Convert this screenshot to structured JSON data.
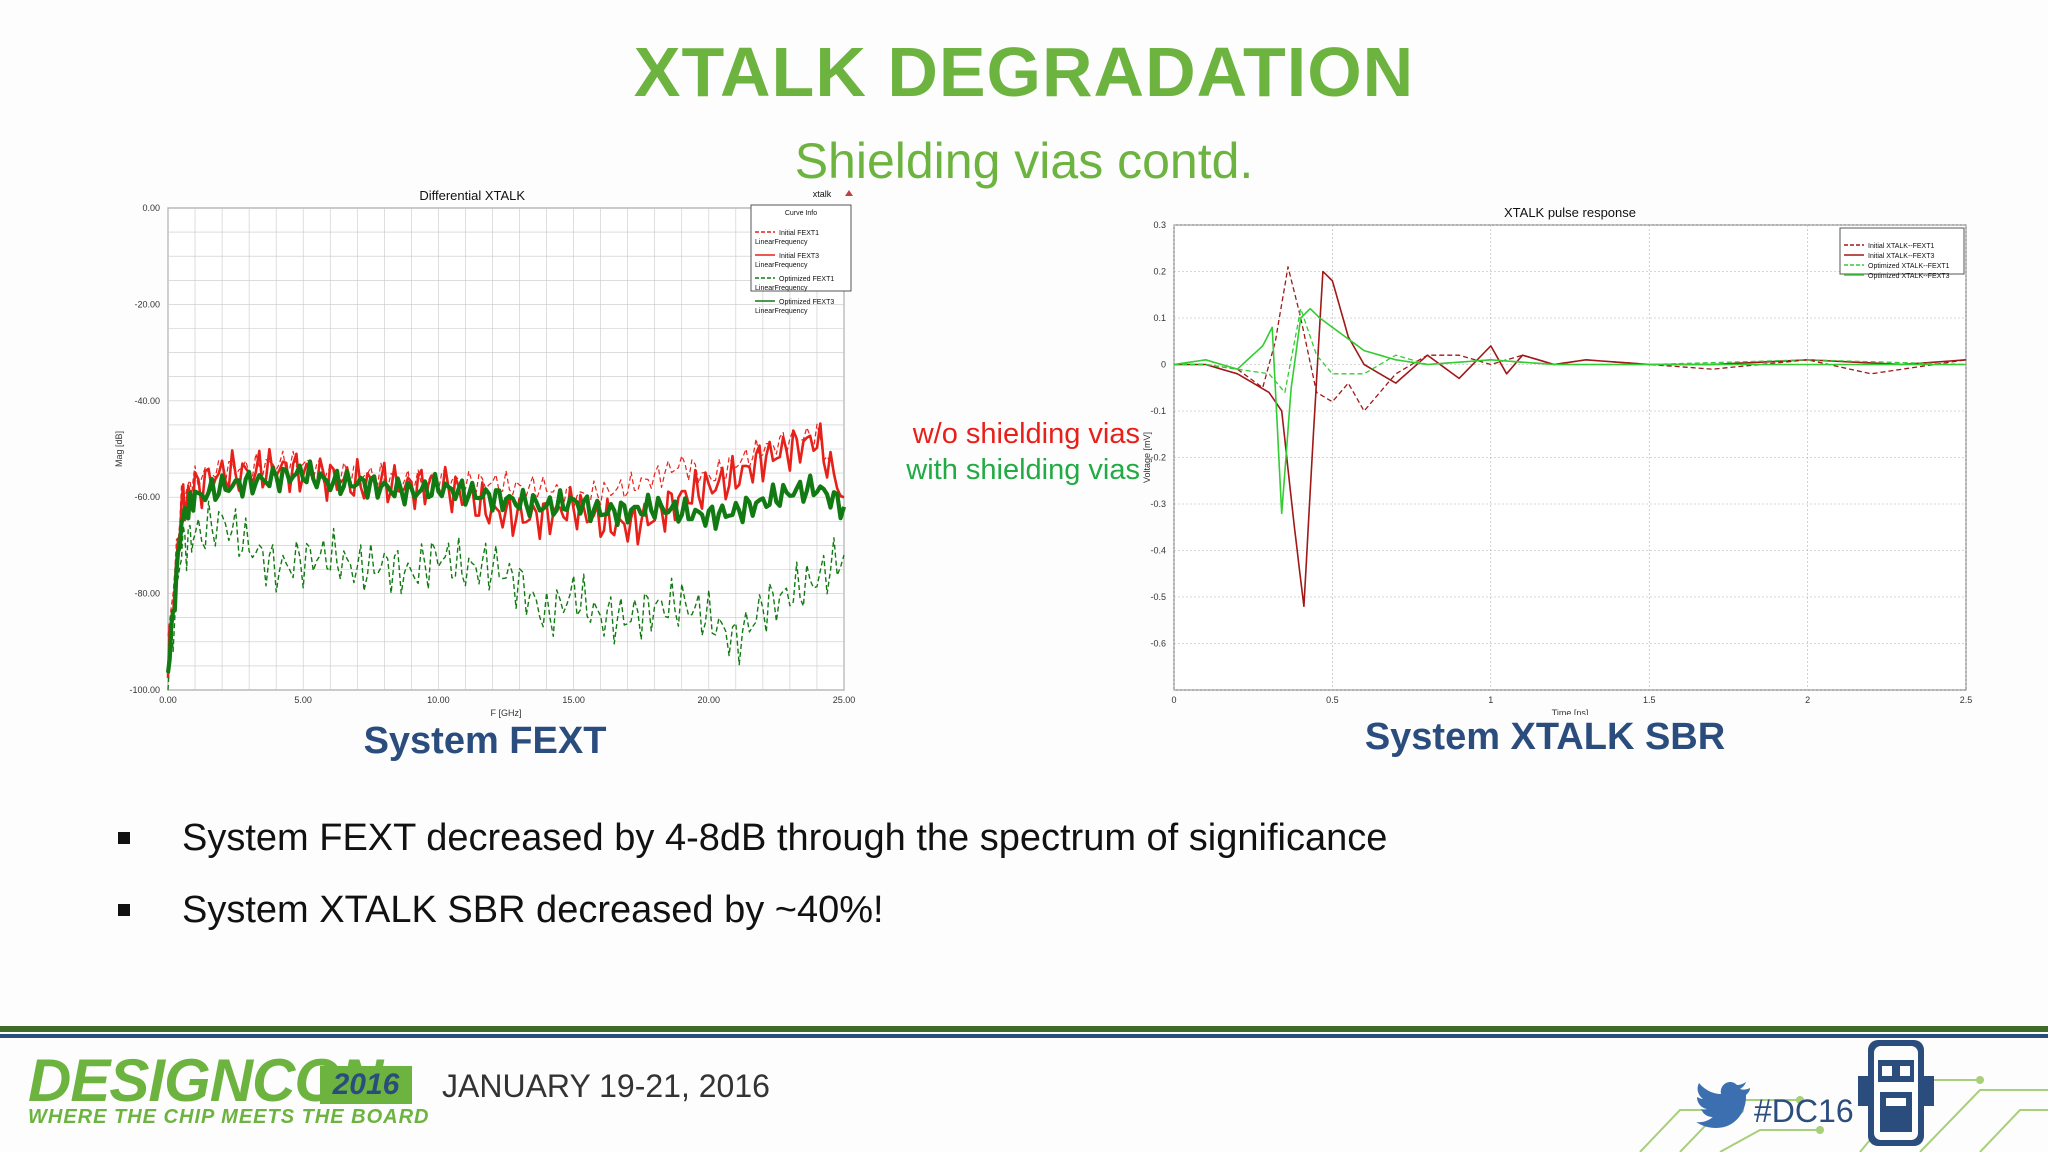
{
  "slide": {
    "title": "XTALK DEGRADATION",
    "subtitle": "Shielding vias contd.",
    "caption_left": "System FEXT",
    "caption_right": "System XTALK SBR",
    "annotation_red": "w/o shielding vias",
    "annotation_green": "with shielding vias",
    "bullets": [
      "System FEXT decreased by 4-8dB through the spectrum of significance",
      "System XTALK SBR decreased by ~40%!"
    ]
  },
  "footer": {
    "logo": "DESIGNCON",
    "year": "2016",
    "tagline": "WHERE THE CHIP MEETS THE BOARD",
    "date": "JANUARY 19-21, 2016",
    "hashtag": "#DC16",
    "icons": [
      "twitter-bird-icon",
      "robot-mascot-icon",
      "circuit-trace-icon"
    ]
  },
  "colors": {
    "accent_green": "#6db33f",
    "navy": "#2b4d7e",
    "red": "#e8201a",
    "dark_green": "#127a12",
    "bright_green": "#33cc33",
    "dark_red": "#a01818"
  },
  "chart_data": [
    {
      "type": "line",
      "title": "Differential XTALK",
      "corner_label": "xtalk",
      "xlabel": "F [GHz]",
      "ylabel": "Mag [dB]",
      "xlim": [
        0,
        25
      ],
      "ylim": [
        -100,
        0
      ],
      "xticks": [
        "0.00",
        "5.00",
        "10.00",
        "15.00",
        "20.00",
        "25.00"
      ],
      "yticks": [
        "0.00",
        "-20.00",
        "-40.00",
        "-60.00",
        "-80.00",
        "-100.00"
      ],
      "grid": true,
      "legend_position": "top-right",
      "legend_title": "Curve Info",
      "series": [
        {
          "name": "Initial FEXT1",
          "sub": "LinearFrequency",
          "style": "dashed",
          "color": "#e8201a",
          "x": [
            0,
            0.5,
            1,
            2,
            3,
            4,
            5,
            6,
            7,
            8,
            9,
            10,
            11,
            12,
            13,
            14,
            15,
            16,
            17,
            18,
            19,
            20,
            21,
            22,
            23,
            24,
            25
          ],
          "y": [
            -90,
            -60,
            -56,
            -54,
            -54,
            -53,
            -53,
            -55,
            -55,
            -56,
            -57,
            -56,
            -57,
            -57,
            -58,
            -58,
            -60,
            -59,
            -58,
            -56,
            -53,
            -56,
            -53,
            -50,
            -48,
            -47,
            -60
          ]
        },
        {
          "name": "Initial FEXT3",
          "sub": "LinearFrequency",
          "style": "solid",
          "color": "#e8201a",
          "x": [
            0,
            0.5,
            1,
            2,
            3,
            4,
            5,
            6,
            7,
            8,
            9,
            10,
            11,
            12,
            13,
            14,
            15,
            16,
            17,
            18,
            19,
            20,
            21,
            22,
            23,
            24,
            25
          ],
          "y": [
            -95,
            -62,
            -58,
            -55,
            -55,
            -54,
            -55,
            -56,
            -57,
            -57,
            -58,
            -57,
            -60,
            -63,
            -64,
            -64,
            -62,
            -65,
            -66,
            -64,
            -60,
            -58,
            -56,
            -52,
            -50,
            -48,
            -60
          ]
        },
        {
          "name": "Optimized FEXT1",
          "sub": "LinearFrequency",
          "style": "dashed",
          "color": "#127a12",
          "x": [
            0,
            0.5,
            1,
            2,
            3,
            4,
            5,
            6,
            7,
            8,
            9,
            10,
            11,
            12,
            13,
            14,
            15,
            16,
            17,
            18,
            19,
            20,
            21,
            22,
            23,
            24,
            25
          ],
          "y": [
            -98,
            -70,
            -68,
            -65,
            -70,
            -75,
            -73,
            -72,
            -75,
            -74,
            -76,
            -72,
            -75,
            -74,
            -78,
            -85,
            -80,
            -85,
            -85,
            -83,
            -82,
            -85,
            -90,
            -83,
            -80,
            -77,
            -72
          ]
        },
        {
          "name": "Optimized FEXT3",
          "sub": "LinearFrequency",
          "style": "solid",
          "color": "#127a12",
          "x": [
            0,
            0.5,
            1,
            2,
            3,
            4,
            5,
            6,
            7,
            8,
            9,
            10,
            11,
            12,
            13,
            14,
            15,
            16,
            17,
            18,
            19,
            20,
            21,
            22,
            23,
            24,
            25
          ],
          "y": [
            -96,
            -65,
            -60,
            -58,
            -57,
            -56,
            -55,
            -57,
            -57,
            -58,
            -59,
            -58,
            -59,
            -60,
            -61,
            -62,
            -61,
            -63,
            -63,
            -62,
            -63,
            -64,
            -63,
            -61,
            -59,
            -58,
            -62
          ]
        }
      ]
    },
    {
      "type": "line",
      "title": "XTALK pulse response",
      "xlabel": "Time [ns]",
      "ylabel": "Voltage [mV]",
      "xlim": [
        0,
        2.5
      ],
      "ylim": [
        -0.7,
        0.3
      ],
      "xticks": [
        "0",
        "0.5",
        "1",
        "1.5",
        "2",
        "2.5"
      ],
      "yticks": [
        "0.3",
        "0.2",
        "0.1",
        "0",
        "-0.1",
        "-0.2",
        "-0.3",
        "-0.4",
        "-0.5",
        "-0.6"
      ],
      "grid": true,
      "legend_position": "top-right",
      "series": [
        {
          "name": "Initial XTALK--FEXT1",
          "style": "dashed",
          "color": "#a01818",
          "x": [
            0,
            0.1,
            0.2,
            0.28,
            0.32,
            0.36,
            0.4,
            0.45,
            0.5,
            0.55,
            0.6,
            0.7,
            0.8,
            0.9,
            1.0,
            1.1,
            1.2,
            1.3,
            1.5,
            1.7,
            2.0,
            2.2,
            2.5
          ],
          "y": [
            0,
            0,
            -0.01,
            -0.05,
            0.05,
            0.21,
            0.1,
            -0.06,
            -0.08,
            -0.04,
            -0.1,
            -0.02,
            0.02,
            0.02,
            0,
            0.02,
            0,
            0.01,
            0,
            -0.01,
            0.01,
            -0.02,
            0.01
          ]
        },
        {
          "name": "Initial XTALK--FEXT3",
          "style": "solid",
          "color": "#a01818",
          "x": [
            0,
            0.1,
            0.2,
            0.3,
            0.34,
            0.38,
            0.41,
            0.44,
            0.47,
            0.5,
            0.55,
            0.6,
            0.7,
            0.8,
            0.9,
            1.0,
            1.05,
            1.1,
            1.2,
            1.3,
            1.5,
            1.7,
            2.0,
            2.3,
            2.5
          ],
          "y": [
            0,
            0,
            -0.02,
            -0.06,
            -0.1,
            -0.35,
            -0.52,
            -0.15,
            0.2,
            0.18,
            0.06,
            0,
            -0.04,
            0.02,
            -0.03,
            0.04,
            -0.02,
            0.02,
            0,
            0.01,
            0,
            0,
            0.01,
            0,
            0.01
          ]
        },
        {
          "name": "Optimized XTALK--FEXT1",
          "style": "dashed",
          "color": "#33cc33",
          "x": [
            0,
            0.1,
            0.2,
            0.3,
            0.35,
            0.4,
            0.45,
            0.5,
            0.6,
            0.7,
            0.8,
            1.0,
            1.2,
            1.5,
            2.0,
            2.5
          ],
          "y": [
            0,
            0,
            -0.01,
            -0.02,
            -0.06,
            0.12,
            0.02,
            -0.02,
            -0.02,
            0.02,
            0,
            0.01,
            0,
            0,
            0.01,
            0
          ]
        },
        {
          "name": "Optimized XTALK--FEXT3",
          "style": "solid",
          "color": "#33cc33",
          "x": [
            0,
            0.1,
            0.2,
            0.28,
            0.31,
            0.34,
            0.37,
            0.4,
            0.43,
            0.46,
            0.5,
            0.6,
            0.7,
            0.8,
            1.0,
            1.2,
            1.5,
            2.0,
            2.5
          ],
          "y": [
            0,
            0.01,
            -0.01,
            0.04,
            0.08,
            -0.32,
            -0.05,
            0.1,
            0.12,
            0.1,
            0.08,
            0.03,
            0.01,
            0,
            0.01,
            0,
            0,
            0,
            0
          ]
        }
      ]
    }
  ]
}
